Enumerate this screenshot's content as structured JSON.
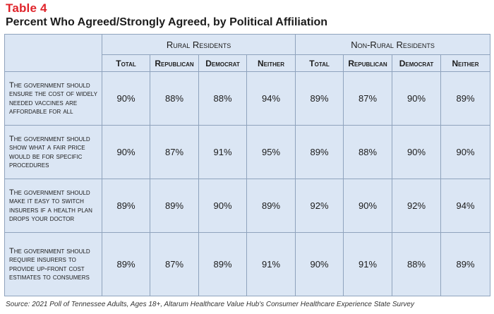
{
  "table_label": "Table 4",
  "title": "Percent Who Agreed/Strongly Agreed, by Political Affiliation",
  "groups": [
    "Rural Residents",
    "Non-Rural Residents"
  ],
  "columns": [
    "Total",
    "Republican",
    "Democrat",
    "Neither",
    "Total",
    "Republican",
    "Democrat",
    "Neither"
  ],
  "rows": [
    {
      "statement": "The government should ensure the cost of widely needed vaccines are affordable for all",
      "values": [
        "90%",
        "88%",
        "88%",
        "94%",
        "89%",
        "87%",
        "90%",
        "89%"
      ]
    },
    {
      "statement": "The government should show what a fair price would be for specific procedures",
      "values": [
        "90%",
        "87%",
        "91%",
        "95%",
        "89%",
        "88%",
        "90%",
        "90%"
      ]
    },
    {
      "statement": "The government should make it easy to switch insurers if a health plan drops your doctor",
      "values": [
        "89%",
        "89%",
        "90%",
        "89%",
        "92%",
        "90%",
        "92%",
        "94%"
      ]
    },
    {
      "statement": "The government should require insurers to provide up-front cost estimates to consumers",
      "values": [
        "89%",
        "87%",
        "89%",
        "91%",
        "90%",
        "91%",
        "88%",
        "89%"
      ]
    }
  ],
  "source": "Source: 2021 Poll of Tennessee Adults, Ages 18+, Altarum Healthcare Value Hub's Consumer Healthcare Experience State Survey"
}
